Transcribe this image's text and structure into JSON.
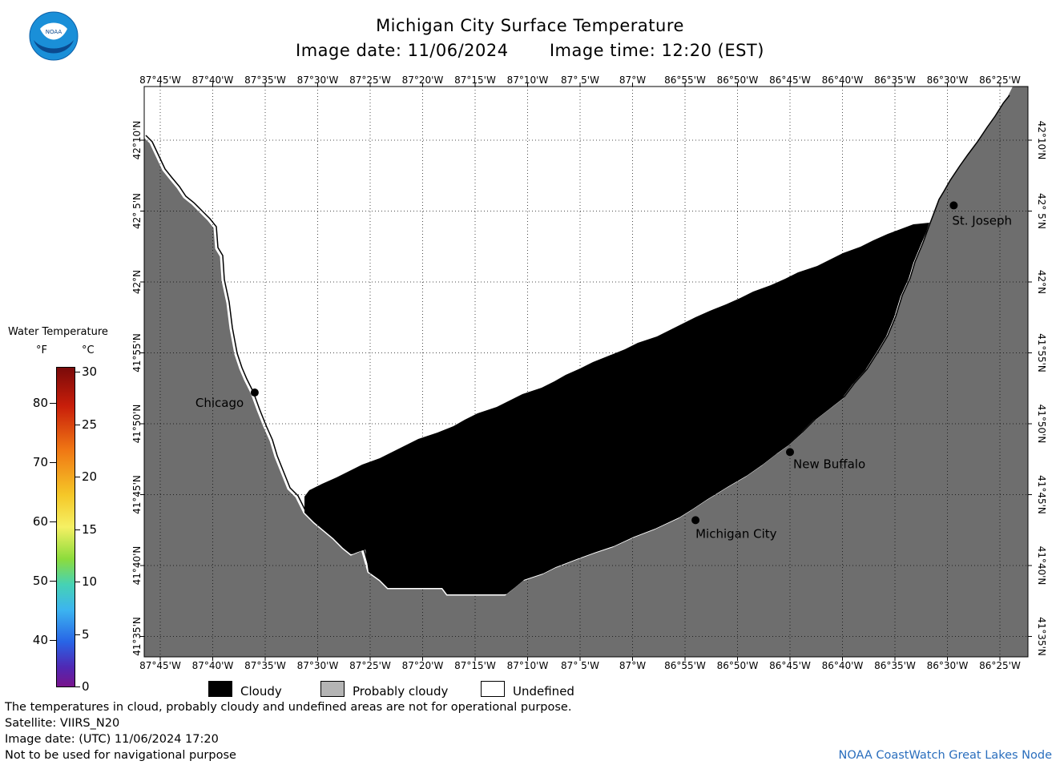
{
  "header": {
    "title": "Michigan City Surface Temperature",
    "image_date": "Image date: 11/06/2024",
    "image_time": "Image time: 12:20 (EST)",
    "logo_text": "NOAA"
  },
  "map": {
    "lon_labels": [
      "87°45'W",
      "87°40'W",
      "87°35'W",
      "87°30'W",
      "87°25'W",
      "87°20'W",
      "87°15'W",
      "87°10'W",
      "87° 5'W",
      "87°W",
      "86°55'W",
      "86°50'W",
      "86°45'W",
      "86°40'W",
      "86°35'W",
      "86°30'W",
      "86°25'W"
    ],
    "lat_labels": [
      "42°10'N",
      "42° 5'N",
      "42°N",
      "41°55'N",
      "41°50'N",
      "41°45'N",
      "41°40'N",
      "41°35'N"
    ],
    "places": [
      {
        "name": "Chicago",
        "lon": -87.6,
        "lat": 41.87
      },
      {
        "name": "Michigan City",
        "lon": -86.9,
        "lat": 41.72
      },
      {
        "name": "New Buffalo",
        "lon": -86.75,
        "lat": 41.8
      },
      {
        "name": "St. Joseph",
        "lon": -86.49,
        "lat": 42.09
      }
    ],
    "colors": {
      "land": "#6e6e6e",
      "cloudy": "#000000",
      "probably_cloudy": "#b4b4b4",
      "undefined": "#ffffff"
    }
  },
  "colorbar": {
    "title": "Water Temperature",
    "unit_f": "°F",
    "unit_c": "°C",
    "f_ticks": [
      "80",
      "70",
      "60",
      "50",
      "40"
    ],
    "c_ticks": [
      "30",
      "25",
      "20",
      "15",
      "10",
      "5",
      "0"
    ]
  },
  "legend": {
    "cloudy": "Cloudy",
    "probably_cloudy": "Probably cloudy",
    "undefined": "Undefined"
  },
  "notes": {
    "line1": "The temperatures in cloud, probably cloudy and undefined areas are not for operational purpose.",
    "line2": "Satellite: VIIRS_N20",
    "line3": "Image date: (UTC) 11/06/2024  17:20",
    "line4": "Not to be used for navigational purpose"
  },
  "credit": "NOAA CoastWatch Great Lakes Node"
}
